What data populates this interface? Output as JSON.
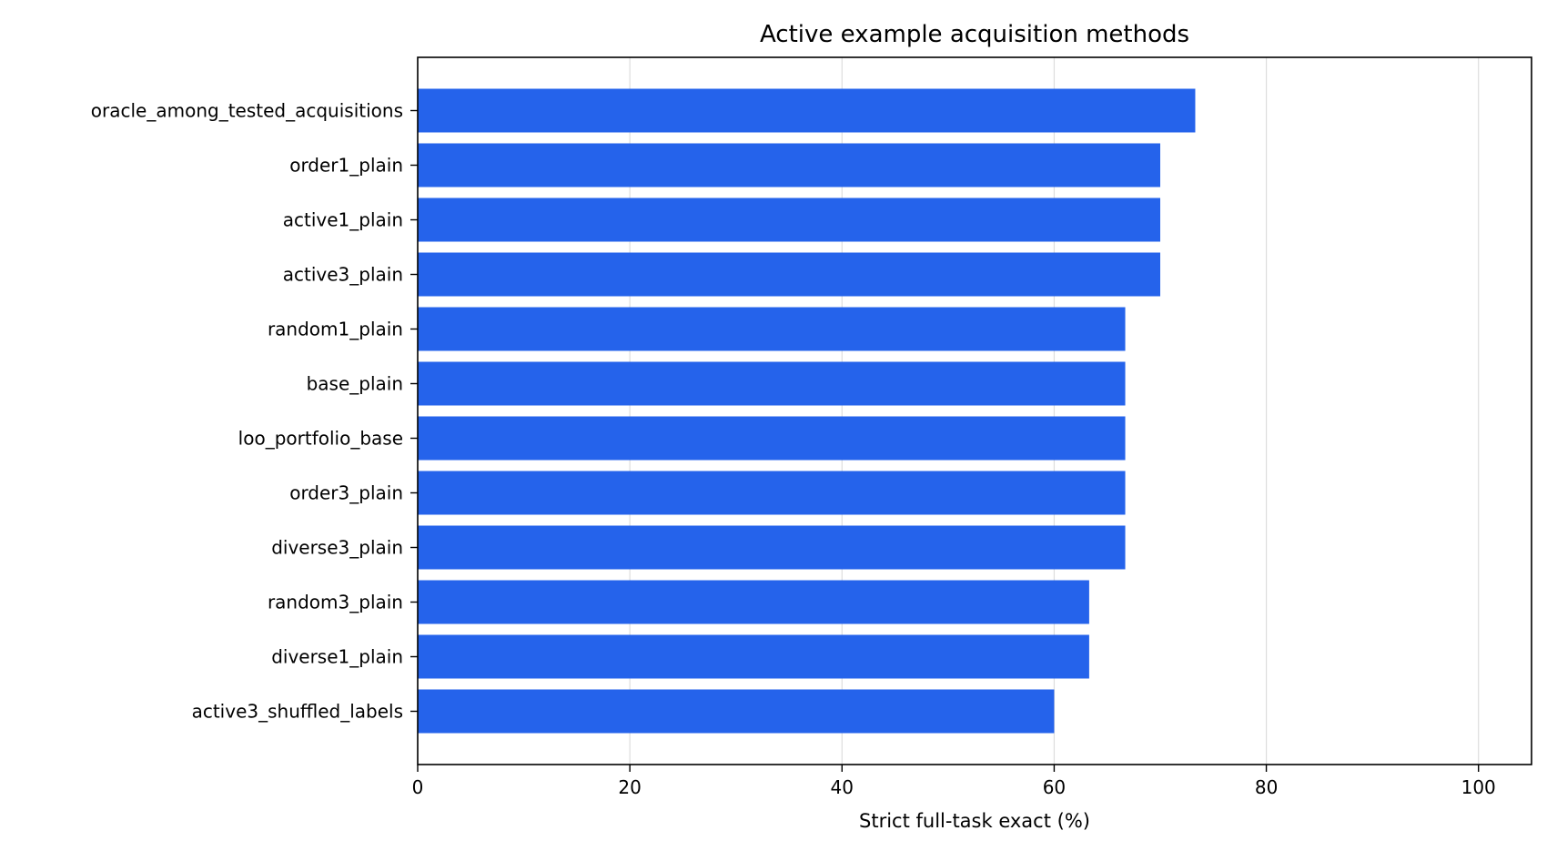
{
  "chart_data": {
    "type": "bar",
    "orientation": "horizontal",
    "title": "Active example acquisition methods",
    "xlabel": "Strict full-task exact (%)",
    "ylabel": "",
    "xlim": [
      0,
      105
    ],
    "xticks": [
      0,
      20,
      40,
      60,
      80,
      100
    ],
    "grid": "x",
    "bar_color": "#2563eb",
    "categories": [
      "oracle_among_tested_acquisitions",
      "order1_plain",
      "active1_plain",
      "active3_plain",
      "random1_plain",
      "base_plain",
      "loo_portfolio_base",
      "order3_plain",
      "diverse3_plain",
      "random3_plain",
      "diverse1_plain",
      "active3_shuffled_labels"
    ],
    "values": [
      73.3,
      70.0,
      70.0,
      70.0,
      66.7,
      66.7,
      66.7,
      66.7,
      66.7,
      63.3,
      63.3,
      60.0
    ]
  }
}
